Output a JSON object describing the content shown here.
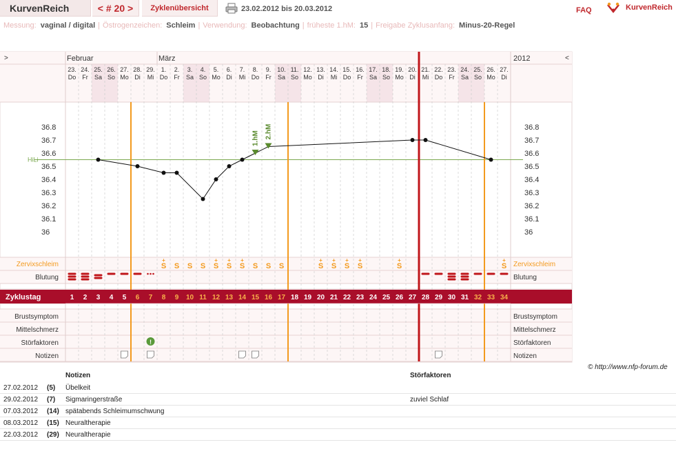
{
  "topbar": {
    "app_title": "KurvenReich",
    "cycle_nav": "< # 20 >",
    "overview_tab": "Zyklenübersicht",
    "date_range": "23.02.2012 bis 20.03.2012",
    "faq": "FAQ",
    "brand": "KurvenReich"
  },
  "settings": [
    {
      "label": "Messung:",
      "value": "vaginal / digital"
    },
    {
      "label": "Östrogenzeichen:",
      "value": "Schleim"
    },
    {
      "label": "Verwendung:",
      "value": "Beobachtung"
    },
    {
      "label": "früheste 1.hM:",
      "value": "15"
    },
    {
      "label": "Freigabe Zyklusanfang:",
      "value": "Minus-20-Regel"
    }
  ],
  "chart_data": {
    "type": "line",
    "nav_left": ">",
    "nav_right": "<",
    "month_labels": [
      "Februar",
      "März"
    ],
    "year_label": "2012",
    "dates": [
      "23.",
      "24.",
      "25.",
      "26.",
      "27.",
      "28.",
      "29.",
      "1.",
      "2.",
      "3.",
      "4.",
      "5.",
      "6.",
      "7.",
      "8.",
      "9.",
      "10.",
      "11.",
      "12.",
      "13.",
      "14.",
      "15.",
      "16.",
      "17.",
      "18.",
      "19.",
      "20.",
      "21.",
      "22.",
      "23.",
      "24.",
      "25.",
      "26.",
      "27."
    ],
    "weekdays": [
      "Do",
      "Fr",
      "Sa",
      "So",
      "Mo",
      "Di",
      "Mi",
      "Do",
      "Fr",
      "Sa",
      "So",
      "Mo",
      "Di",
      "Mi",
      "Do",
      "Fr",
      "Sa",
      "So",
      "Mo",
      "Di",
      "Mi",
      "Do",
      "Fr",
      "Sa",
      "So",
      "Mo",
      "Di",
      "Mi",
      "Do",
      "Fr",
      "Sa",
      "So",
      "Mo",
      "Di"
    ],
    "cycle_days": [
      "1",
      "2",
      "3",
      "4",
      "5",
      "6",
      "7",
      "8",
      "9",
      "10",
      "11",
      "12",
      "13",
      "14",
      "15",
      "16",
      "17",
      "18",
      "19",
      "20",
      "21",
      "22",
      "23",
      "24",
      "25",
      "26",
      "27",
      "28",
      "29",
      "30",
      "31",
      "32",
      "33",
      "34"
    ],
    "y_ticks": [
      "36.8",
      "36.7",
      "36.6",
      "36.5",
      "36.4",
      "36.3",
      "36.2",
      "36.1",
      "36"
    ],
    "ylim": [
      36.0,
      36.8
    ],
    "coverline_label": "HiLi",
    "coverline": 36.55,
    "temps": [
      null,
      null,
      36.55,
      null,
      null,
      36.5,
      null,
      36.45,
      36.45,
      null,
      36.25,
      36.4,
      36.5,
      36.55,
      36.6,
      36.65,
      null,
      null,
      null,
      null,
      null,
      null,
      null,
      null,
      null,
      null,
      36.7,
      36.7,
      null,
      null,
      null,
      null,
      36.55,
      null
    ],
    "higher_measurements": [
      {
        "label": "1.hM",
        "day": 15
      },
      {
        "label": "2.hM",
        "day": 16
      }
    ],
    "orange_lines_after_day": [
      5,
      17,
      32
    ],
    "red_line_after_day": 27,
    "mucus_label": "Zervixschleim",
    "mucus": [
      "",
      "",
      "",
      "",
      "",
      "",
      "",
      "S+",
      "S",
      "S",
      "S",
      "S+",
      "S+",
      "S+",
      "S",
      "S",
      "S",
      "",
      "",
      "S+",
      "S+",
      "S+",
      "S+",
      "",
      "",
      "S+",
      "",
      "",
      "",
      "",
      "",
      "",
      "",
      "S+"
    ],
    "bleeding_label": "Blutung",
    "bleeding": [
      3,
      3,
      2,
      1,
      1,
      1,
      0.5,
      0,
      0,
      0,
      0,
      0,
      0,
      0,
      0,
      0,
      0,
      0,
      0,
      0,
      0,
      0,
      0,
      0,
      0,
      0,
      0,
      1,
      1,
      3,
      3,
      1,
      1,
      1
    ],
    "cycleday_label": "Zyklustag",
    "highlight_cycle_days_from": 6,
    "highlight_cycle_days_to": 17,
    "highlight2_from": 32,
    "highlight2_to": 34,
    "extra_rows": [
      "Brustsymptom",
      "Mittelschmerz",
      "Störfaktoren",
      "Notizen"
    ],
    "stoerfaktor_day": 7,
    "notiz_days": [
      5,
      7,
      14,
      15,
      29
    ]
  },
  "copyright": "© http://www.nfp-forum.de",
  "notes": {
    "header_notes": "Notizen",
    "header_stoer": "Störfaktoren",
    "rows": [
      {
        "date": "27.02.2012",
        "day": "(5)",
        "note": "Übelkeit",
        "stoer": ""
      },
      {
        "date": "29.02.2012",
        "day": "(7)",
        "note": "Sigmaringerstraße",
        "stoer": "zuviel Schlaf"
      },
      {
        "date": "07.03.2012",
        "day": "(14)",
        "note": "spätabends Schleimumschwung",
        "stoer": ""
      },
      {
        "date": "08.03.2012",
        "day": "(15)",
        "note": "Neuraltherapie",
        "stoer": ""
      },
      {
        "date": "22.03.2012",
        "day": "(29)",
        "note": "Neuraltherapie",
        "stoer": ""
      }
    ]
  },
  "colors": {
    "accent": "#c0282d",
    "orange": "#f39a1e",
    "grid_bg": "#fdf6f6",
    "weekend": "#f5e4e8"
  }
}
